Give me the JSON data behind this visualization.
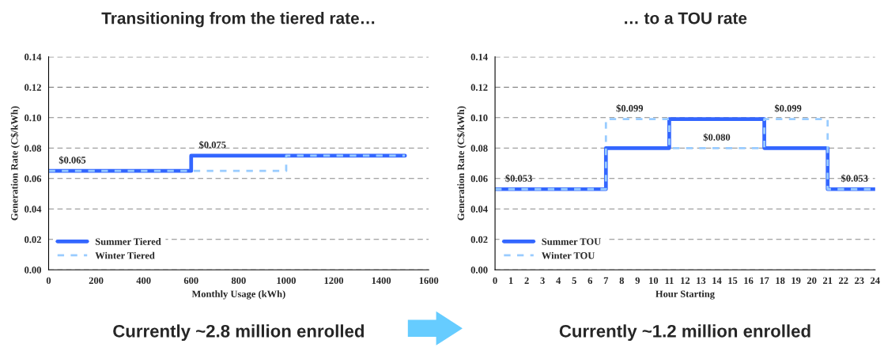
{
  "chart_data": [
    {
      "type": "step",
      "title": "Transitioning from the tiered rate…",
      "xlabel": "Monthly Usage (kWh)",
      "ylabel": "Generation Rate (C$/kWh)",
      "series": [
        {
          "name": "Summer Tiered",
          "color": "#3366ff",
          "line_style": "solid",
          "x": [
            0,
            600,
            1500
          ],
          "values": [
            0.065,
            0.075,
            0.075
          ]
        },
        {
          "name": "Winter Tiered",
          "color": "#99ccff",
          "line_style": "dashed",
          "x": [
            0,
            1000,
            1500
          ],
          "values": [
            0.065,
            0.075,
            0.075
          ]
        }
      ],
      "xlim": [
        0,
        1600
      ],
      "xticks": [
        0,
        200,
        400,
        600,
        800,
        1000,
        1200,
        1400,
        1600
      ],
      "ylim": [
        0,
        0.14
      ],
      "yticks": [
        {
          "value": 0,
          "label": "0.00"
        },
        {
          "value": 0.02,
          "label": "0.02"
        },
        {
          "value": 0.04,
          "label": "0.04"
        },
        {
          "value": 0.06,
          "label": "0.06"
        },
        {
          "value": 0.08,
          "label": "0.08"
        },
        {
          "value": 0.1,
          "label": "0.10"
        },
        {
          "value": 0.12,
          "label": "0.12"
        },
        {
          "value": 0.14,
          "label": "0.14"
        }
      ],
      "grid": "y",
      "legend": "bottom left",
      "annotations": [
        {
          "text": "$0.065",
          "x": 100,
          "y": 0.065
        },
        {
          "text": "$0.075",
          "x": 690,
          "y": 0.075
        },
        "Currently ~2.8 million enrolled"
      ]
    },
    {
      "type": "step",
      "title": "… to a TOU rate",
      "xlabel": "Hour Starting",
      "ylabel": "Generation Rate (C$/kWh)",
      "series": [
        {
          "name": "Summer TOU",
          "color": "#3366ff",
          "line_style": "solid",
          "x": [
            0,
            7,
            11,
            17,
            21,
            24
          ],
          "values": [
            0.053,
            0.08,
            0.099,
            0.08,
            0.053,
            0.053
          ]
        },
        {
          "name": "Winter TOU",
          "color": "#99ccff",
          "line_style": "dashed",
          "x": [
            0,
            7,
            11,
            17,
            21,
            24
          ],
          "values": [
            0.053,
            0.099,
            0.08,
            0.099,
            0.053,
            0.053
          ]
        }
      ],
      "xlim": [
        0,
        24
      ],
      "xticks": [
        0,
        1,
        2,
        3,
        4,
        5,
        6,
        7,
        8,
        9,
        10,
        11,
        12,
        13,
        14,
        15,
        16,
        17,
        18,
        19,
        20,
        21,
        22,
        23,
        24
      ],
      "ylim": [
        0,
        0.14
      ],
      "yticks": [
        {
          "value": 0,
          "label": "0.00"
        },
        {
          "value": 0.02,
          "label": "0.02"
        },
        {
          "value": 0.04,
          "label": "0.04"
        },
        {
          "value": 0.06,
          "label": "0.06"
        },
        {
          "value": 0.08,
          "label": "0.08"
        },
        {
          "value": 0.1,
          "label": "0.10"
        },
        {
          "value": 0.12,
          "label": "0.12"
        },
        {
          "value": 0.14,
          "label": "0.14"
        }
      ],
      "grid": "y",
      "legend": "bottom left",
      "annotations": [
        {
          "text": "$0.053",
          "x": 1.5,
          "y": 0.053
        },
        {
          "text": "$0.099",
          "x": 8.5,
          "y": 0.099
        },
        {
          "text": "$0.080",
          "x": 14,
          "y": 0.08
        },
        {
          "text": "$0.099",
          "x": 18.5,
          "y": 0.099
        },
        {
          "text": "$0.053",
          "x": 22.7,
          "y": 0.053
        },
        "Currently ~1.2 million enrolled"
      ]
    }
  ]
}
